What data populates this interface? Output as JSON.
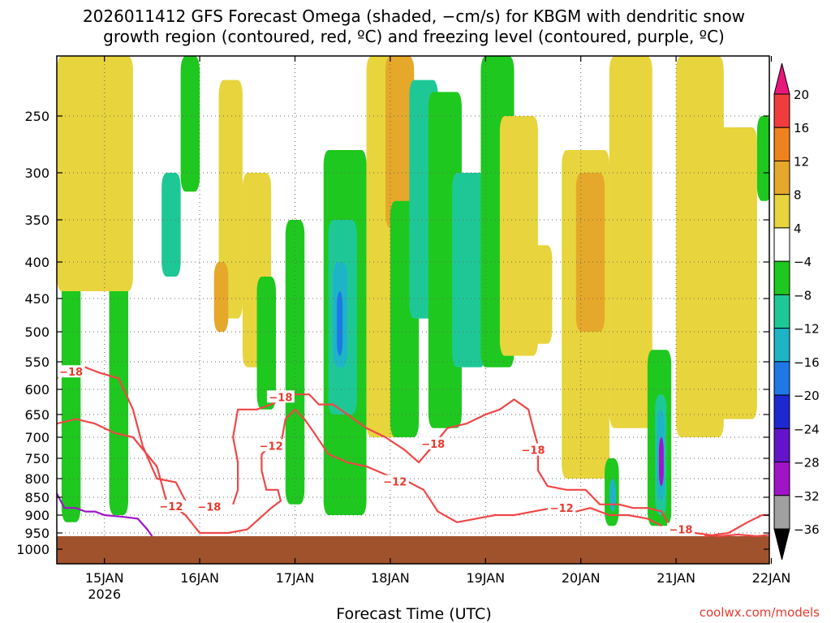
{
  "chart_data": {
    "type": "heatmap",
    "title_line1": "2026011412 GFS Forecast Omega (shaded, −cm/s) for KBGM with dendritic snow",
    "title_line2": "growth region (contoured, red, ºC) and freezing level (contoured, purple, ºC)",
    "xlabel": "Forecast Time (UTC)",
    "credit": "coolwx.com/models",
    "y_axis": {
      "reversed": true,
      "ylim": [
        1050,
        200
      ],
      "ticks": [
        {
          "value": 250,
          "label": "250"
        },
        {
          "value": 300,
          "label": "300"
        },
        {
          "value": 350,
          "label": "350"
        },
        {
          "value": 400,
          "label": "400"
        },
        {
          "value": 450,
          "label": "450"
        },
        {
          "value": 500,
          "label": "500"
        },
        {
          "value": 550,
          "label": "550"
        },
        {
          "value": 600,
          "label": "600"
        },
        {
          "value": 650,
          "label": "650"
        },
        {
          "value": 700,
          "label": "700"
        },
        {
          "value": 750,
          "label": "750"
        },
        {
          "value": 800,
          "label": "800"
        },
        {
          "value": 850,
          "label": "850"
        },
        {
          "value": 900,
          "label": "900"
        },
        {
          "value": 950,
          "label": "950"
        },
        {
          "value": 1000,
          "label": "1000"
        }
      ]
    },
    "x_axis": {
      "xlim_days": [
        14.5,
        22.0
      ],
      "ticks": [
        {
          "value": 15,
          "label": "15JAN",
          "sublabel": "2026"
        },
        {
          "value": 16,
          "label": "16JAN",
          "sublabel": ""
        },
        {
          "value": 17,
          "label": "17JAN",
          "sublabel": ""
        },
        {
          "value": 18,
          "label": "18JAN",
          "sublabel": ""
        },
        {
          "value": 19,
          "label": "19JAN",
          "sublabel": ""
        },
        {
          "value": 20,
          "label": "20JAN",
          "sublabel": ""
        },
        {
          "value": 21,
          "label": "21JAN",
          "sublabel": ""
        },
        {
          "value": 22,
          "label": "22JAN",
          "sublabel": ""
        }
      ]
    },
    "grid": true,
    "colorbar": {
      "levels": [
        {
          "label": "20",
          "color": "#e8187a"
        },
        {
          "label": "16",
          "color": "#f03c3c"
        },
        {
          "label": "12",
          "color": "#f0821e"
        },
        {
          "label": "8",
          "color": "#e6a82a"
        },
        {
          "label": "4",
          "color": "#e8d43c"
        },
        {
          "label": "−4",
          "color": "#ffffff"
        },
        {
          "label": "−8",
          "color": "#1ec81e"
        },
        {
          "label": "−12",
          "color": "#1ec896"
        },
        {
          "label": "−16",
          "color": "#1eb4c8"
        },
        {
          "label": "−20",
          "color": "#1e78e6"
        },
        {
          "label": "−24",
          "color": "#1e28d2"
        },
        {
          "label": "−28",
          "color": "#6414c8"
        },
        {
          "label": "−32",
          "color": "#a014c8"
        },
        {
          "label": "−36",
          "color": "#a0a0a0"
        }
      ],
      "bottom_color": "#000000"
    },
    "shaded_regions": [
      {
        "name": "green-band",
        "color": "#1ec81e",
        "day_start": 14.55,
        "day_end": 14.75,
        "p_top": 240,
        "p_bottom": 920
      },
      {
        "name": "green-band",
        "color": "#1ec81e",
        "day_start": 15.05,
        "day_end": 15.25,
        "p_top": 180,
        "p_bottom": 900
      },
      {
        "name": "yellow-band",
        "color": "#e8d43c",
        "day_start": 14.5,
        "day_end": 15.3,
        "p_top": 200,
        "p_bottom": 440
      },
      {
        "name": "teal-band",
        "color": "#1ec896",
        "day_start": 15.6,
        "day_end": 15.8,
        "p_top": 300,
        "p_bottom": 420
      },
      {
        "name": "green-band",
        "color": "#1ec81e",
        "day_start": 15.8,
        "day_end": 16.0,
        "p_top": 200,
        "p_bottom": 320
      },
      {
        "name": "yellow-band",
        "color": "#e8d43c",
        "day_start": 16.2,
        "day_end": 16.45,
        "p_top": 220,
        "p_bottom": 480
      },
      {
        "name": "orange-band",
        "color": "#e6a82a",
        "day_start": 16.15,
        "day_end": 16.3,
        "p_top": 400,
        "p_bottom": 500
      },
      {
        "name": "yellow-band",
        "color": "#e8d43c",
        "day_start": 16.45,
        "day_end": 16.75,
        "p_top": 300,
        "p_bottom": 560
      },
      {
        "name": "green-band",
        "color": "#1ec81e",
        "day_start": 16.6,
        "day_end": 16.8,
        "p_top": 420,
        "p_bottom": 640
      },
      {
        "name": "green-band",
        "color": "#1ec81e",
        "day_start": 16.9,
        "day_end": 17.1,
        "p_top": 350,
        "p_bottom": 870
      },
      {
        "name": "green-band",
        "color": "#1ec81e",
        "day_start": 17.3,
        "day_end": 17.75,
        "p_top": 280,
        "p_bottom": 900
      },
      {
        "name": "teal-band",
        "color": "#1ec896",
        "day_start": 17.35,
        "day_end": 17.65,
        "p_top": 350,
        "p_bottom": 650
      },
      {
        "name": "cyan-band",
        "color": "#1eb4c8",
        "day_start": 17.4,
        "day_end": 17.55,
        "p_top": 400,
        "p_bottom": 560
      },
      {
        "name": "blue-band",
        "color": "#1e78e6",
        "day_start": 17.44,
        "day_end": 17.5,
        "p_top": 440,
        "p_bottom": 540
      },
      {
        "name": "yellow-band",
        "color": "#e8d43c",
        "day_start": 17.75,
        "day_end": 18.2,
        "p_top": 200,
        "p_bottom": 700
      },
      {
        "name": "orange-band",
        "color": "#e6a82a",
        "day_start": 17.95,
        "day_end": 18.25,
        "p_top": 200,
        "p_bottom": 360
      },
      {
        "name": "green-band",
        "color": "#1ec81e",
        "day_start": 18.0,
        "day_end": 18.3,
        "p_top": 330,
        "p_bottom": 700
      },
      {
        "name": "teal-band",
        "color": "#1ec896",
        "day_start": 18.2,
        "day_end": 18.5,
        "p_top": 220,
        "p_bottom": 480
      },
      {
        "name": "green-band",
        "color": "#1ec81e",
        "day_start": 18.4,
        "day_end": 18.75,
        "p_top": 230,
        "p_bottom": 680
      },
      {
        "name": "teal-band",
        "color": "#1ec896",
        "day_start": 18.65,
        "day_end": 19.0,
        "p_top": 300,
        "p_bottom": 560
      },
      {
        "name": "green-band",
        "color": "#1ec81e",
        "day_start": 18.95,
        "day_end": 19.3,
        "p_top": 200,
        "p_bottom": 560
      },
      {
        "name": "yellow-band",
        "color": "#e8d43c",
        "day_start": 19.15,
        "day_end": 19.55,
        "p_top": 250,
        "p_bottom": 540
      },
      {
        "name": "yellow-band",
        "color": "#e8d43c",
        "day_start": 19.5,
        "day_end": 19.7,
        "p_top": 380,
        "p_bottom": 520
      },
      {
        "name": "yellow-band",
        "color": "#e8d43c",
        "day_start": 19.8,
        "day_end": 20.3,
        "p_top": 280,
        "p_bottom": 800
      },
      {
        "name": "orange-band",
        "color": "#e6a82a",
        "day_start": 19.95,
        "day_end": 20.25,
        "p_top": 300,
        "p_bottom": 500
      },
      {
        "name": "yellow-band",
        "color": "#e8d43c",
        "day_start": 20.3,
        "day_end": 20.75,
        "p_top": 200,
        "p_bottom": 680
      },
      {
        "name": "green-band",
        "color": "#1ec81e",
        "day_start": 20.7,
        "day_end": 20.95,
        "p_top": 530,
        "p_bottom": 930
      },
      {
        "name": "teal-band",
        "color": "#1ec896",
        "day_start": 20.78,
        "day_end": 20.9,
        "p_top": 610,
        "p_bottom": 900
      },
      {
        "name": "cyan-band",
        "color": "#1eb4c8",
        "day_start": 20.8,
        "day_end": 20.88,
        "p_top": 640,
        "p_bottom": 860
      },
      {
        "name": "purple-band",
        "color": "#a014c8",
        "day_start": 20.82,
        "day_end": 20.87,
        "p_top": 700,
        "p_bottom": 820
      },
      {
        "name": "green-band",
        "color": "#1ec81e",
        "day_start": 20.25,
        "day_end": 20.4,
        "p_top": 750,
        "p_bottom": 930
      },
      {
        "name": "cyan-band",
        "color": "#1eb4c8",
        "day_start": 20.3,
        "day_end": 20.37,
        "p_top": 800,
        "p_bottom": 890
      },
      {
        "name": "yellow-band",
        "color": "#e8d43c",
        "day_start": 21.0,
        "day_end": 21.5,
        "p_top": 200,
        "p_bottom": 700
      },
      {
        "name": "yellow-band",
        "color": "#e8d43c",
        "day_start": 21.4,
        "day_end": 21.85,
        "p_top": 260,
        "p_bottom": 660
      },
      {
        "name": "green-band",
        "color": "#1ec81e",
        "day_start": 21.85,
        "day_end": 22.0,
        "p_top": 250,
        "p_bottom": 330
      }
    ],
    "ground": {
      "color": "#a0522d",
      "pressure_top": 960,
      "pressure_bottom": 1050
    },
    "dendritic_contours": [
      {
        "value": -18,
        "color": "#f04646",
        "points": [
          [
            14.5,
            580
          ],
          [
            14.62,
            560
          ],
          [
            14.8,
            560
          ],
          [
            14.95,
            570
          ],
          [
            15.15,
            580
          ],
          [
            15.3,
            640
          ],
          [
            15.4,
            720
          ],
          [
            15.55,
            800
          ],
          [
            15.75,
            810
          ],
          [
            15.85,
            860
          ]
        ]
      },
      {
        "value": -12,
        "color": "#f04646",
        "points": [
          [
            14.5,
            670
          ],
          [
            14.7,
            660
          ],
          [
            14.9,
            670
          ],
          [
            15.1,
            690
          ],
          [
            15.3,
            700
          ],
          [
            15.55,
            770
          ],
          [
            15.65,
            860
          ],
          [
            15.85,
            900
          ],
          [
            16.0,
            950
          ],
          [
            16.3,
            950
          ],
          [
            16.5,
            940
          ],
          [
            16.75,
            880
          ],
          [
            16.85,
            860
          ],
          [
            16.82,
            830
          ],
          [
            16.7,
            830
          ],
          [
            16.65,
            780
          ],
          [
            16.65,
            740
          ],
          [
            16.75,
            720
          ],
          [
            16.85,
            720
          ],
          [
            16.9,
            660
          ],
          [
            17.0,
            640
          ],
          [
            17.1,
            660
          ],
          [
            17.2,
            690
          ],
          [
            17.35,
            740
          ],
          [
            17.55,
            760
          ],
          [
            17.75,
            770
          ],
          [
            17.95,
            790
          ],
          [
            18.2,
            810
          ],
          [
            18.35,
            830
          ],
          [
            18.5,
            890
          ],
          [
            18.7,
            920
          ],
          [
            18.9,
            910
          ],
          [
            19.1,
            900
          ],
          [
            19.3,
            900
          ],
          [
            19.5,
            890
          ],
          [
            19.7,
            880
          ],
          [
            19.95,
            890
          ],
          [
            20.1,
            880
          ],
          [
            20.3,
            900
          ],
          [
            20.5,
            900
          ],
          [
            20.7,
            910
          ],
          [
            20.85,
            930
          ]
        ]
      },
      {
        "value": -18,
        "color": "#f04646",
        "points": [
          [
            16.35,
            870
          ],
          [
            16.4,
            830
          ],
          [
            16.4,
            760
          ],
          [
            16.35,
            700
          ],
          [
            16.4,
            640
          ],
          [
            16.6,
            640
          ],
          [
            16.75,
            630
          ],
          [
            16.95,
            610
          ],
          [
            17.15,
            610
          ],
          [
            17.25,
            630
          ],
          [
            17.4,
            630
          ],
          [
            17.55,
            650
          ],
          [
            17.75,
            680
          ],
          [
            17.95,
            700
          ],
          [
            18.15,
            730
          ],
          [
            18.3,
            760
          ],
          [
            18.45,
            720
          ],
          [
            18.6,
            680
          ],
          [
            18.8,
            670
          ],
          [
            19.0,
            650
          ],
          [
            19.15,
            640
          ],
          [
            19.3,
            620
          ],
          [
            19.45,
            640
          ],
          [
            19.5,
            680
          ],
          [
            19.55,
            720
          ],
          [
            19.55,
            780
          ],
          [
            19.65,
            820
          ],
          [
            19.85,
            830
          ],
          [
            20.05,
            830
          ],
          [
            20.2,
            870
          ],
          [
            20.4,
            870
          ],
          [
            20.55,
            880
          ],
          [
            20.7,
            880
          ],
          [
            20.85,
            890
          ],
          [
            20.95,
            940
          ],
          [
            21.2,
            950
          ],
          [
            21.45,
            960
          ],
          [
            21.65,
            955
          ],
          [
            21.85,
            960
          ],
          [
            22.0,
            955
          ]
        ]
      },
      {
        "value": -12,
        "color": "#f04646",
        "points": [
          [
            21.3,
            960
          ],
          [
            21.55,
            950
          ],
          [
            21.75,
            920
          ],
          [
            21.9,
            900
          ],
          [
            22.0,
            900
          ]
        ]
      }
    ],
    "contour_labels": [
      {
        "text": "−18",
        "day": 14.65,
        "pressure": 568
      },
      {
        "text": "−12",
        "day": 15.7,
        "pressure": 875
      },
      {
        "text": "−18",
        "day": 16.1,
        "pressure": 876
      },
      {
        "text": "−12",
        "day": 16.75,
        "pressure": 720
      },
      {
        "text": "−18",
        "day": 16.85,
        "pressure": 615
      },
      {
        "text": "−12",
        "day": 18.05,
        "pressure": 808
      },
      {
        "text": "−18",
        "day": 18.45,
        "pressure": 715
      },
      {
        "text": "−18",
        "day": 19.5,
        "pressure": 730
      },
      {
        "text": "−12",
        "day": 19.8,
        "pressure": 880
      },
      {
        "text": "−18",
        "day": 21.05,
        "pressure": 940
      }
    ],
    "freezing_contour": {
      "color": "#a014c8",
      "points": [
        [
          14.5,
          840
        ],
        [
          14.58,
          880
        ],
        [
          14.7,
          880
        ],
        [
          14.8,
          890
        ],
        [
          14.9,
          890
        ],
        [
          15.0,
          900
        ],
        [
          15.2,
          905
        ],
        [
          15.35,
          910
        ],
        [
          15.45,
          940
        ],
        [
          15.5,
          960
        ]
      ]
    }
  }
}
